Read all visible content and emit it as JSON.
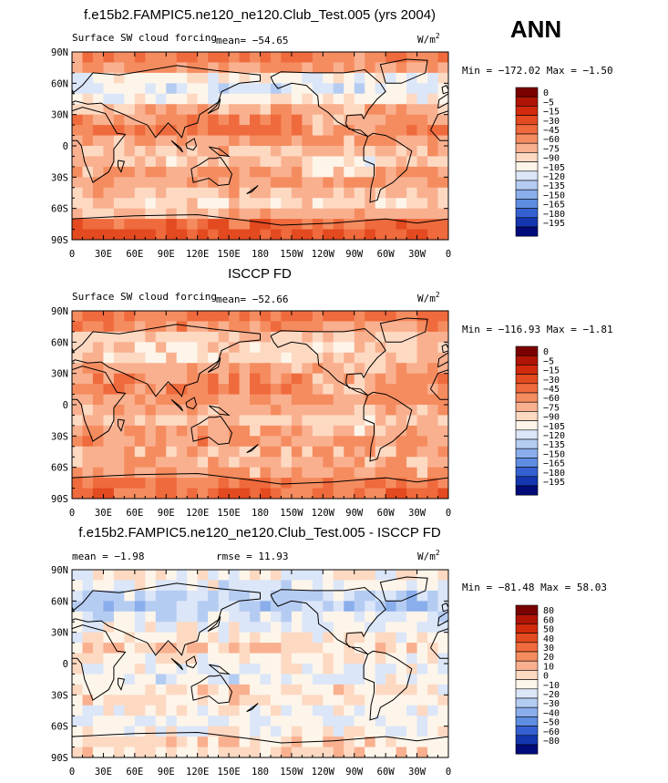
{
  "header": {
    "title_main": "f.e15b2.FAMPIC5.ne120_ne120.Club_Test.005 (yrs 2004)",
    "season": "ANN"
  },
  "colors": {
    "land_outline": "#000000",
    "frame": "#000000"
  },
  "chart_data": [
    {
      "type": "heatmap",
      "name": "panel-model",
      "title": "",
      "subtitle_left": "Surface SW cloud forcing",
      "mean_label": "mean=  −54.65",
      "units": "W/m",
      "units_exp": "2",
      "minmax": "Min = −172.02 Max =  −1.50",
      "x_ticks": [
        "0",
        "30E",
        "60E",
        "90E",
        "120E",
        "150E",
        "180",
        "150W",
        "120W",
        "90W",
        "60W",
        "30W",
        "0"
      ],
      "y_ticks": [
        "90N",
        "60N",
        "30N",
        "0",
        "30S",
        "60S",
        "90S"
      ],
      "x_range": [
        0,
        360
      ],
      "y_range": [
        -90,
        90
      ],
      "colorbar_levels": [
        "0",
        "−5",
        "−15",
        "−30",
        "−45",
        "−60",
        "−75",
        "−90",
        "−105",
        "−120",
        "−135",
        "−150",
        "−165",
        "−180",
        "−195"
      ],
      "colorbar_colors": [
        "#7a0000",
        "#b01405",
        "#d12a0c",
        "#e34a1f",
        "#ef6a3c",
        "#f58c5f",
        "#f9b08f",
        "#fdd9c2",
        "#fdf5ea",
        "#dbe6f8",
        "#b5ccf2",
        "#8aaeeb",
        "#5f8de2",
        "#3560d2",
        "#1437b0",
        "#000a78"
      ],
      "zonal_band_values": [
        -40,
        -60,
        -115,
        -95,
        -60,
        -45,
        -70,
        -80,
        -55,
        -70,
        -85,
        -40,
        -25
      ]
    },
    {
      "type": "heatmap",
      "name": "panel-obs",
      "title": "ISCCP FD",
      "subtitle_left": "Surface SW cloud forcing",
      "mean_label": "mean=  −52.66",
      "units": "W/m",
      "units_exp": "2",
      "minmax": "Min = −116.93 Max =  −1.81",
      "x_ticks": [
        "0",
        "30E",
        "60E",
        "90E",
        "120E",
        "150E",
        "180",
        "150W",
        "120W",
        "90W",
        "60W",
        "30W",
        "0"
      ],
      "y_ticks": [
        "90N",
        "60N",
        "30N",
        "0",
        "30S",
        "60S",
        "90S"
      ],
      "x_range": [
        0,
        360
      ],
      "y_range": [
        -90,
        90
      ],
      "colorbar_levels": [
        "0",
        "−5",
        "−15",
        "−30",
        "−45",
        "−60",
        "−75",
        "−90",
        "−105",
        "−120",
        "−135",
        "−150",
        "−165",
        "−180",
        "−195"
      ],
      "colorbar_colors": [
        "#7a0000",
        "#b01405",
        "#d12a0c",
        "#e34a1f",
        "#ef6a3c",
        "#f58c5f",
        "#f9b08f",
        "#fdd9c2",
        "#fdf5ea",
        "#dbe6f8",
        "#b5ccf2",
        "#8aaeeb",
        "#5f8de2",
        "#3560d2",
        "#1437b0",
        "#000a78"
      ],
      "zonal_band_values": [
        -40,
        -55,
        -85,
        -80,
        -55,
        -50,
        -65,
        -75,
        -55,
        -65,
        -70,
        -45,
        -35
      ]
    },
    {
      "type": "heatmap",
      "name": "panel-diff",
      "title": "f.e15b2.FAMPIC5.ne120_ne120.Club_Test.005 - ISCCP FD",
      "subtitle_left": "mean =  −1.98",
      "mean_label": "rmse =  11.93",
      "units": "W/m",
      "units_exp": "2",
      "minmax": "Min = −81.48 Max =  58.03",
      "x_ticks": [
        "0",
        "30E",
        "60E",
        "90E",
        "120E",
        "150E",
        "180",
        "150W",
        "120W",
        "90W",
        "60W",
        "30W",
        "0"
      ],
      "y_ticks": [
        "90N",
        "60N",
        "30N",
        "0",
        "30S",
        "60S",
        "90S"
      ],
      "x_range": [
        0,
        360
      ],
      "y_range": [
        -90,
        90
      ],
      "colorbar_levels": [
        "80",
        "60",
        "50",
        "40",
        "30",
        "20",
        "10",
        "0",
        "−10",
        "−20",
        "−30",
        "−40",
        "−50",
        "−60",
        "−80"
      ],
      "colorbar_colors": [
        "#7a0000",
        "#b01405",
        "#d12a0c",
        "#e34a1f",
        "#ef6a3c",
        "#f58c5f",
        "#f9b08f",
        "#fdd9c2",
        "#fdf5ea",
        "#dbe6f8",
        "#b5ccf2",
        "#8aaeeb",
        "#5f8de2",
        "#3560d2",
        "#1437b0",
        "#000a78"
      ],
      "zonal_band_values": [
        0,
        -10,
        -25,
        -15,
        -5,
        5,
        -5,
        -10,
        5,
        -5,
        -10,
        5,
        5
      ]
    }
  ]
}
